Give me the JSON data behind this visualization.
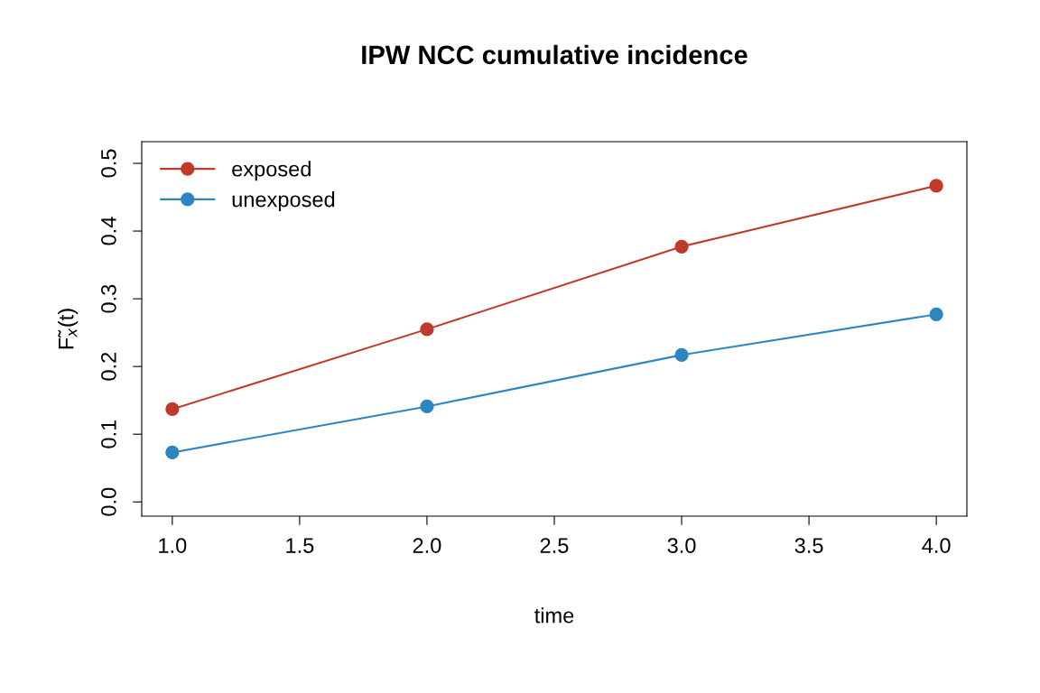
{
  "chart_data": {
    "type": "line",
    "title": "IPW NCC cumulative incidence",
    "xlabel": "time",
    "ylabel": "F̃$_{x}$(t)",
    "x": [
      1,
      2,
      3,
      4
    ],
    "series": [
      {
        "name": "exposed",
        "color": "#c0392b",
        "values": [
          0.137,
          0.255,
          0.377,
          0.467
        ]
      },
      {
        "name": "unexposed",
        "color": "#2e86c1",
        "values": [
          0.073,
          0.141,
          0.217,
          0.277
        ]
      }
    ],
    "xlim": [
      0.88,
      4.12
    ],
    "ylim": [
      -0.021,
      0.532
    ],
    "xticks": [
      {
        "value": 1,
        "label": "1.0"
      },
      {
        "value": 1.5,
        "label": "1.5"
      },
      {
        "value": 2,
        "label": "2.0"
      },
      {
        "value": 2.5,
        "label": "2.5"
      },
      {
        "value": 3,
        "label": "3.0"
      },
      {
        "value": 3.5,
        "label": "3.5"
      },
      {
        "value": 4,
        "label": "4.0"
      }
    ],
    "yticks": [
      {
        "value": 0,
        "label": "0.0"
      },
      {
        "value": 0.1,
        "label": "0.1"
      },
      {
        "value": 0.2,
        "label": "0.2"
      },
      {
        "value": 0.3,
        "label": "0.3"
      },
      {
        "value": 0.4,
        "label": "0.4"
      },
      {
        "value": 0.5,
        "label": "0.5"
      }
    ],
    "grid": false,
    "legend": "top left",
    "marker": "circle",
    "line_style": "solid"
  }
}
